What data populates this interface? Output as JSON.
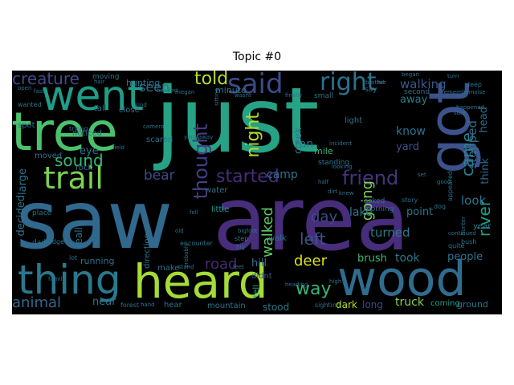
{
  "title": "Topic #0",
  "chart_data": {
    "type": "wordcloud",
    "title": "Topic #0",
    "background": "#000000",
    "colormap": "viridis",
    "words": [
      {
        "text": "just",
        "color": "#26a285"
      },
      {
        "text": "saw",
        "color": "#31688e"
      },
      {
        "text": "area",
        "color": "#472d7b"
      },
      {
        "text": "tree",
        "color": "#4ac16d"
      },
      {
        "text": "heard",
        "color": "#a5db36"
      },
      {
        "text": "wood",
        "color": "#2f6c8e"
      },
      {
        "text": "got",
        "color": "#3b528b"
      },
      {
        "text": "went",
        "color": "#1f9e89"
      },
      {
        "text": "thing",
        "color": "#2a788e"
      },
      {
        "text": "said",
        "color": "#3e4a89"
      },
      {
        "text": "trail",
        "color": "#7ad151"
      },
      {
        "text": "right",
        "color": "#2c728e"
      },
      {
        "text": "thought",
        "color": "#433e85"
      },
      {
        "text": "creature",
        "color": "#3e4c8a"
      },
      {
        "text": "came",
        "color": "#26828e"
      },
      {
        "text": "friend",
        "color": "#46337e"
      },
      {
        "text": "started",
        "color": "#472d7b"
      },
      {
        "text": "night",
        "color": "#b5de2b"
      },
      {
        "text": "told",
        "color": "#b8de29"
      },
      {
        "text": "seen",
        "color": "#2d708e"
      },
      {
        "text": "sound",
        "color": "#35b779"
      },
      {
        "text": "going",
        "color": "#7ad151"
      },
      {
        "text": "left",
        "color": "#3b528b"
      },
      {
        "text": "river",
        "color": "#1fa187"
      },
      {
        "text": "bear",
        "color": "#3e4989"
      },
      {
        "text": "walked",
        "color": "#5ec962"
      },
      {
        "text": "deer",
        "color": "#dde318"
      },
      {
        "text": "road",
        "color": "#482878"
      },
      {
        "text": "way",
        "color": "#35b779"
      },
      {
        "text": "animal",
        "color": "#31688e"
      },
      {
        "text": "day",
        "color": "#3e4a89"
      },
      {
        "text": "turned",
        "color": "#2a788e"
      },
      {
        "text": "look",
        "color": "#2c728e"
      },
      {
        "text": "walking",
        "color": "#38588c"
      },
      {
        "text": "away",
        "color": "#287d8e"
      },
      {
        "text": "stopped",
        "color": "#2e6e8e"
      },
      {
        "text": "head",
        "color": "#2e6e8e"
      },
      {
        "text": "think",
        "color": "#31688e"
      },
      {
        "text": "took",
        "color": "#2a788e"
      },
      {
        "text": "brush",
        "color": "#38b977"
      },
      {
        "text": "people",
        "color": "#2c728e"
      },
      {
        "text": "truck",
        "color": "#84d44b"
      },
      {
        "text": "coming",
        "color": "#1fa187"
      },
      {
        "text": "ground",
        "color": "#2c728e"
      },
      {
        "text": "long",
        "color": "#3e4a89"
      },
      {
        "text": "dark",
        "color": "#b8de29"
      },
      {
        "text": "camp",
        "color": "#2c728e"
      },
      {
        "text": "lake",
        "color": "#2a788e"
      },
      {
        "text": "know",
        "color": "#2c728e"
      },
      {
        "text": "yard",
        "color": "#3b528b"
      },
      {
        "text": "light",
        "color": "#2c728e"
      },
      {
        "text": "ran",
        "color": "#2c728e"
      },
      {
        "text": "mile",
        "color": "#35b779"
      },
      {
        "text": "creek",
        "color": "#2a788e"
      },
      {
        "text": "hill",
        "color": "#2c728e"
      },
      {
        "text": "didnt",
        "color": "#3b528b"
      },
      {
        "text": "stood",
        "color": "#2a788e"
      },
      {
        "text": "tell",
        "color": "#22a884"
      },
      {
        "text": "walk",
        "color": "#2c728e"
      },
      {
        "text": "little",
        "color": "#1f9e89"
      },
      {
        "text": "point",
        "color": "#2c728e"
      },
      {
        "text": "year",
        "color": "#2a788e"
      },
      {
        "text": "near",
        "color": "#2c728e"
      },
      {
        "text": "eye",
        "color": "#2c728e"
      },
      {
        "text": "rock",
        "color": "#2c728e"
      },
      {
        "text": "minute",
        "color": "#2c728e"
      },
      {
        "text": "hunting",
        "color": "#2c728e"
      },
      {
        "text": "noticed",
        "color": "#2c728e"
      },
      {
        "text": "decided",
        "color": "#2c728e"
      },
      {
        "text": "large",
        "color": "#2c728e"
      },
      {
        "text": "really",
        "color": "#2c728e"
      },
      {
        "text": "direction",
        "color": "#2c728e"
      },
      {
        "text": "scared",
        "color": "#2c728e"
      },
      {
        "text": "running",
        "color": "#2c728e"
      },
      {
        "text": "water",
        "color": "#2c728e"
      },
      {
        "text": "make",
        "color": "#2c728e"
      },
      {
        "text": "hear",
        "color": "#2c728e"
      },
      {
        "text": "mountain",
        "color": "#2c728e"
      },
      {
        "text": "tall",
        "color": "#2c728e"
      },
      {
        "text": "close",
        "color": "#2c728e"
      },
      {
        "text": "moved",
        "color": "#2c728e"
      },
      {
        "text": "spot",
        "color": "#2c728e"
      },
      {
        "text": "small",
        "color": "#2c728e"
      },
      {
        "text": "second",
        "color": "#2c728e"
      },
      {
        "text": "moving",
        "color": "#2c728e"
      },
      {
        "text": "standing",
        "color": "#2c728e"
      },
      {
        "text": "morning",
        "color": "#2c728e"
      },
      {
        "text": "asked",
        "color": "#2c728e"
      },
      {
        "text": "say",
        "color": "#2c728e"
      },
      {
        "text": "place",
        "color": "#2c728e"
      },
      {
        "text": "dog",
        "color": "#2c728e"
      },
      {
        "text": "story",
        "color": "#2c728e"
      },
      {
        "text": "step",
        "color": "#2c728e"
      },
      {
        "text": "edge",
        "color": "#2c728e"
      },
      {
        "text": "dad",
        "color": "#2c728e"
      },
      {
        "text": "lot",
        "color": "#2c728e"
      },
      {
        "text": "hair",
        "color": "#2c728e"
      },
      {
        "text": "kind",
        "color": "#2c728e"
      },
      {
        "text": "trying",
        "color": "#2c728e"
      },
      {
        "text": "sighting",
        "color": "#2c728e"
      },
      {
        "text": "encounter",
        "color": "#2c728e"
      },
      {
        "text": "probably",
        "color": "#2c728e"
      },
      {
        "text": "wanted",
        "color": "#2c728e"
      },
      {
        "text": "forest",
        "color": "#2c728e"
      },
      {
        "text": "hand",
        "color": "#2c728e"
      },
      {
        "text": "continued",
        "color": "#2c728e"
      },
      {
        "text": "bush",
        "color": "#2c728e"
      },
      {
        "text": "quite",
        "color": "#2c728e"
      },
      {
        "text": "hunter",
        "color": "#2c728e"
      },
      {
        "text": "sitting",
        "color": "#2c728e"
      },
      {
        "text": "deep",
        "color": "#2c728e"
      },
      {
        "text": "noise",
        "color": "#2c728e"
      },
      {
        "text": "brother",
        "color": "#2c728e"
      },
      {
        "text": "finally",
        "color": "#2c728e"
      },
      {
        "text": "wasnt",
        "color": "#2c728e"
      },
      {
        "text": "incident",
        "color": "#2c728e"
      },
      {
        "text": "appeared",
        "color": "#2c728e"
      },
      {
        "text": "happened",
        "color": "#2c728e"
      },
      {
        "text": "knew",
        "color": "#2c728e"
      },
      {
        "text": "far",
        "color": "#2c728e"
      },
      {
        "text": "began",
        "color": "#2c728e"
      },
      {
        "text": "stand",
        "color": "#2c728e"
      },
      {
        "text": "high",
        "color": "#2c728e"
      },
      {
        "text": "field",
        "color": "#2c728e"
      },
      {
        "text": "remember",
        "color": "#2c728e"
      },
      {
        "text": "megan",
        "color": "#2c728e"
      },
      {
        "text": "yard away",
        "color": "#2c728e"
      },
      {
        "text": "family",
        "color": "#2c728e"
      },
      {
        "text": "headed",
        "color": "#2c728e"
      },
      {
        "text": "old",
        "color": "#2c728e"
      },
      {
        "text": "big",
        "color": "#2c728e"
      },
      {
        "text": "feet",
        "color": "#2c728e"
      },
      {
        "text": "sure",
        "color": "#2c728e"
      },
      {
        "text": "good",
        "color": "#2c728e"
      },
      {
        "text": "set",
        "color": "#2c728e"
      },
      {
        "text": "looking",
        "color": "#2c728e"
      },
      {
        "text": "hit",
        "color": "#2c728e"
      },
      {
        "text": "fell",
        "color": "#2c728e"
      },
      {
        "text": "turn",
        "color": "#2c728e"
      },
      {
        "text": "open",
        "color": "#2c728e"
      },
      {
        "text": "fast",
        "color": "#2c728e"
      },
      {
        "text": "half",
        "color": "#2c728e"
      },
      {
        "text": "heading",
        "color": "#2c728e"
      },
      {
        "text": "dirt",
        "color": "#2c728e"
      },
      {
        "text": "camera",
        "color": "#2c728e"
      },
      {
        "text": "bigfoot",
        "color": "#2c728e"
      }
    ]
  }
}
